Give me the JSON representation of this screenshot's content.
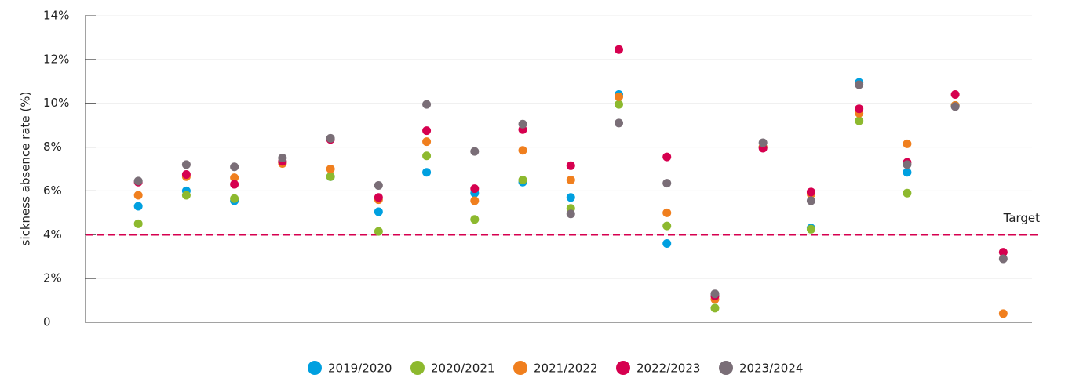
{
  "chart_data": {
    "type": "scatter",
    "y_label": "sickness absence rate (%)",
    "categories": [
      null,
      null,
      null,
      null,
      null,
      null,
      null,
      null,
      null,
      null,
      null,
      null,
      null,
      null,
      null,
      null,
      null,
      null,
      null
    ],
    "series": [
      {
        "name": "2019/2020",
        "color": "#00a0e0",
        "values": [
          5.3,
          6.0,
          5.55,
          7.3,
          6.65,
          5.05,
          6.85,
          5.9,
          6.4,
          5.7,
          10.4,
          3.6,
          1.2,
          8.0,
          4.3,
          10.95,
          6.85,
          9.9,
          null
        ]
      },
      {
        "name": "2020/2021",
        "color": "#8db92e",
        "values": [
          4.5,
          5.8,
          5.65,
          7.3,
          6.65,
          4.15,
          7.6,
          4.7,
          6.5,
          5.2,
          9.95,
          4.4,
          0.65,
          8.0,
          4.25,
          9.2,
          5.9,
          9.9,
          null
        ]
      },
      {
        "name": "2021/2022",
        "color": "#f07f1e",
        "values": [
          5.8,
          6.65,
          6.6,
          7.25,
          7.0,
          5.6,
          8.25,
          5.55,
          7.85,
          6.5,
          10.3,
          5.0,
          1.05,
          8.0,
          5.85,
          9.55,
          8.15,
          9.9,
          0.4
        ]
      },
      {
        "name": "2022/2023",
        "color": "#d6004f",
        "values": [
          6.4,
          6.75,
          6.3,
          7.35,
          8.35,
          5.7,
          8.75,
          6.1,
          8.8,
          7.15,
          12.45,
          7.55,
          1.2,
          7.95,
          5.95,
          9.75,
          7.3,
          10.4,
          3.2
        ]
      },
      {
        "name": "2023/2024",
        "color": "#7a6e77",
        "values": [
          6.45,
          7.2,
          7.1,
          7.5,
          8.4,
          6.25,
          9.95,
          7.8,
          9.05,
          4.95,
          9.1,
          6.35,
          1.3,
          8.2,
          5.55,
          10.85,
          7.2,
          9.85,
          2.9
        ]
      }
    ],
    "ylim": [
      0,
      14
    ],
    "yticks": [
      0,
      {
        "value": 2,
        "label": "2%"
      },
      {
        "value": 4,
        "label": "4%"
      },
      {
        "value": 6,
        "label": "6%"
      },
      {
        "value": 8,
        "label": "8%"
      },
      {
        "value": 10,
        "label": "10%"
      },
      {
        "value": 12,
        "label": "12%"
      },
      {
        "value": 14,
        "label": "14%"
      }
    ],
    "grid": true,
    "target": {
      "value": 4,
      "label": "Target",
      "color": "#d6004f"
    },
    "legend": "bottom"
  }
}
